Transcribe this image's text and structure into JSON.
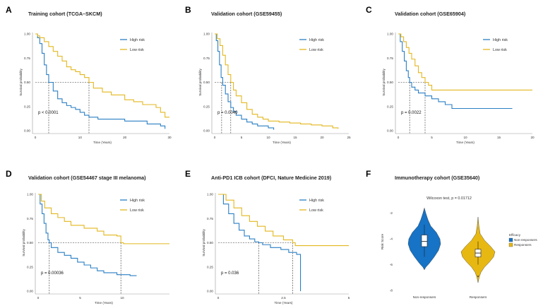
{
  "colors": {
    "high_risk": "#2A7FC4",
    "low_risk": "#E3B71F",
    "non_responders": "#1673C6",
    "responders": "#E8B812"
  },
  "chart_data": [
    {
      "panel": "A",
      "type": "line",
      "subtype": "kaplan-meier",
      "title": "Training cohort (TCGA–SKCM)",
      "xlabel": "Time (Years)",
      "ylabel": "Survival probability",
      "xlim": [
        0,
        30
      ],
      "ylim": [
        0,
        1
      ],
      "xticks": [
        "0",
        "10",
        "20",
        "30"
      ],
      "yticks": [
        "0.00",
        "0.25",
        "0.50",
        "0.75",
        "1.00"
      ],
      "legend_position": "top-right",
      "pvalue_text": "p < 0.0001",
      "median_lines": [
        3,
        12
      ],
      "series": [
        {
          "name": "High risk",
          "points": [
            [
              0,
              1
            ],
            [
              0.5,
              0.96
            ],
            [
              1,
              0.9
            ],
            [
              1.5,
              0.8
            ],
            [
              2,
              0.68
            ],
            [
              2.5,
              0.58
            ],
            [
              3,
              0.5
            ],
            [
              4,
              0.41
            ],
            [
              5,
              0.33
            ],
            [
              6,
              0.29
            ],
            [
              7,
              0.26
            ],
            [
              8,
              0.24
            ],
            [
              9,
              0.22
            ],
            [
              10,
              0.19
            ],
            [
              11,
              0.16
            ],
            [
              12,
              0.14
            ],
            [
              14,
              0.12
            ],
            [
              20,
              0.1
            ],
            [
              25,
              0.07
            ],
            [
              28,
              0.05
            ],
            [
              29,
              0.02
            ]
          ]
        },
        {
          "name": "Low risk",
          "points": [
            [
              0,
              1
            ],
            [
              0.5,
              0.98
            ],
            [
              1,
              0.96
            ],
            [
              2,
              0.92
            ],
            [
              3,
              0.87
            ],
            [
              4,
              0.82
            ],
            [
              5,
              0.77
            ],
            [
              6,
              0.72
            ],
            [
              7,
              0.66
            ],
            [
              8,
              0.63
            ],
            [
              9,
              0.61
            ],
            [
              10,
              0.58
            ],
            [
              11,
              0.55
            ],
            [
              12,
              0.5
            ],
            [
              13,
              0.44
            ],
            [
              15,
              0.4
            ],
            [
              17,
              0.37
            ],
            [
              20,
              0.32
            ],
            [
              22,
              0.3
            ],
            [
              24,
              0.27
            ],
            [
              27,
              0.24
            ],
            [
              28,
              0.19
            ],
            [
              29,
              0.14
            ],
            [
              30,
              0.14
            ]
          ]
        }
      ]
    },
    {
      "panel": "B",
      "type": "line",
      "subtype": "kaplan-meier",
      "title": "Validation cohort (GSE59455)",
      "xlabel": "Time (Years)",
      "ylabel": "Survival probability",
      "xlim": [
        0,
        25
      ],
      "ylim": [
        0,
        1
      ],
      "xticks": [
        "0",
        "5",
        "10",
        "15",
        "20",
        "25"
      ],
      "yticks": [
        "0.00",
        "0.25",
        "0.50",
        "0.75",
        "1.00"
      ],
      "legend_position": "top-right",
      "pvalue_text": "p = 0.0040",
      "median_lines": [
        1.3,
        3
      ],
      "series": [
        {
          "name": "High risk",
          "points": [
            [
              0,
              1
            ],
            [
              0.3,
              0.93
            ],
            [
              0.6,
              0.82
            ],
            [
              0.9,
              0.68
            ],
            [
              1.2,
              0.55
            ],
            [
              1.5,
              0.47
            ],
            [
              2,
              0.38
            ],
            [
              2.5,
              0.3
            ],
            [
              3,
              0.24
            ],
            [
              3.5,
              0.2
            ],
            [
              4,
              0.16
            ],
            [
              5,
              0.12
            ],
            [
              6,
              0.09
            ],
            [
              7,
              0.07
            ],
            [
              8,
              0.05
            ],
            [
              10,
              0.03
            ],
            [
              11,
              0.01
            ]
          ]
        },
        {
          "name": "Low risk",
          "points": [
            [
              0,
              1
            ],
            [
              0.5,
              0.95
            ],
            [
              1,
              0.88
            ],
            [
              1.5,
              0.78
            ],
            [
              2,
              0.68
            ],
            [
              2.5,
              0.58
            ],
            [
              3,
              0.5
            ],
            [
              3.5,
              0.42
            ],
            [
              4,
              0.36
            ],
            [
              5,
              0.29
            ],
            [
              6,
              0.22
            ],
            [
              7,
              0.17
            ],
            [
              8,
              0.14
            ],
            [
              9,
              0.12
            ],
            [
              10,
              0.1
            ],
            [
              12,
              0.09
            ],
            [
              14,
              0.08
            ],
            [
              16,
              0.07
            ],
            [
              18,
              0.06
            ],
            [
              20,
              0.05
            ],
            [
              22,
              0.03
            ],
            [
              23,
              0.02
            ]
          ]
        }
      ]
    },
    {
      "panel": "C",
      "type": "line",
      "subtype": "kaplan-meier",
      "title": "Validation cohort (GSE65904)",
      "xlabel": "Time (Years)",
      "ylabel": "Survival probability",
      "xlim": [
        0,
        20
      ],
      "ylim": [
        0,
        1
      ],
      "xticks": [
        "0",
        "5",
        "10",
        "15",
        "20"
      ],
      "yticks": [
        "0.00",
        "0.25",
        "0.50",
        "0.75",
        "1.00"
      ],
      "legend_position": "top-right",
      "pvalue_text": "p = 0.0022",
      "median_lines": [
        1.7,
        4
      ],
      "series": [
        {
          "name": "High risk",
          "points": [
            [
              0,
              1
            ],
            [
              0.3,
              0.92
            ],
            [
              0.6,
              0.82
            ],
            [
              0.9,
              0.72
            ],
            [
              1.2,
              0.62
            ],
            [
              1.5,
              0.55
            ],
            [
              1.7,
              0.5
            ],
            [
              2,
              0.45
            ],
            [
              2.5,
              0.42
            ],
            [
              3,
              0.39
            ],
            [
              4,
              0.36
            ],
            [
              5,
              0.33
            ],
            [
              6,
              0.3
            ],
            [
              7,
              0.27
            ],
            [
              8,
              0.23
            ],
            [
              17,
              0.23
            ]
          ]
        },
        {
          "name": "Low risk",
          "points": [
            [
              0,
              1
            ],
            [
              0.4,
              0.97
            ],
            [
              0.8,
              0.92
            ],
            [
              1.2,
              0.86
            ],
            [
              1.6,
              0.8
            ],
            [
              2,
              0.74
            ],
            [
              2.5,
              0.67
            ],
            [
              3,
              0.6
            ],
            [
              3.5,
              0.55
            ],
            [
              4,
              0.5
            ],
            [
              4.5,
              0.47
            ],
            [
              5,
              0.42
            ],
            [
              20,
              0.42
            ]
          ]
        }
      ]
    },
    {
      "panel": "D",
      "type": "line",
      "subtype": "kaplan-meier",
      "title": "Validation cohort (GSE54467 stage III melanoma)",
      "xlabel": "Time (Years)",
      "ylabel": "Survival probability",
      "xlim": [
        0,
        20
      ],
      "ylim": [
        0,
        1
      ],
      "xticks": [
        "0",
        "5",
        "10"
      ],
      "yticks": [
        "0.00",
        "0.25",
        "0.50",
        "0.75",
        "1.00"
      ],
      "legend_position": "top-right",
      "pvalue_text": "p = 0.00036",
      "median_lines": [
        1.7,
        12.6
      ],
      "series": [
        {
          "name": "High risk",
          "points": [
            [
              0,
              1
            ],
            [
              0.3,
              0.9
            ],
            [
              0.6,
              0.8
            ],
            [
              0.9,
              0.7
            ],
            [
              1.2,
              0.6
            ],
            [
              1.5,
              0.53
            ],
            [
              1.7,
              0.5
            ],
            [
              2,
              0.45
            ],
            [
              3,
              0.4
            ],
            [
              4,
              0.37
            ],
            [
              5,
              0.34
            ],
            [
              6,
              0.3
            ],
            [
              7,
              0.27
            ],
            [
              8,
              0.24
            ],
            [
              9,
              0.21
            ],
            [
              10,
              0.19
            ],
            [
              12,
              0.17
            ],
            [
              14,
              0.16
            ],
            [
              15,
              0.16
            ]
          ]
        },
        {
          "name": "Low risk",
          "points": [
            [
              0,
              1
            ],
            [
              0.5,
              0.93
            ],
            [
              1,
              0.86
            ],
            [
              2,
              0.8
            ],
            [
              3,
              0.76
            ],
            [
              4,
              0.72
            ],
            [
              5,
              0.68
            ],
            [
              7,
              0.65
            ],
            [
              9,
              0.62
            ],
            [
              10,
              0.58
            ],
            [
              12,
              0.57
            ],
            [
              12.6,
              0.5
            ],
            [
              13,
              0.49
            ],
            [
              20,
              0.49
            ]
          ]
        }
      ]
    },
    {
      "panel": "E",
      "type": "line",
      "subtype": "kaplan-meier",
      "title": "Anti-PD1 ICB cohort (DFCI, Nature Medicine 2019)",
      "xlabel": "Time (Years)",
      "ylabel": "Survival probability",
      "xlim": [
        0,
        5
      ],
      "ylim": [
        0,
        1
      ],
      "xticks": [
        "0",
        "2.5",
        "5"
      ],
      "yticks": [
        "0.00",
        "0.25",
        "0.50",
        "0.75",
        "1.00"
      ],
      "legend_position": "top-right",
      "pvalue_text": "p = 0.036",
      "median_lines": [
        1.55,
        2.85
      ],
      "series": [
        {
          "name": "High risk",
          "points": [
            [
              0,
              1
            ],
            [
              0.2,
              0.9
            ],
            [
              0.4,
              0.8
            ],
            [
              0.6,
              0.7
            ],
            [
              0.8,
              0.63
            ],
            [
              1,
              0.57
            ],
            [
              1.2,
              0.54
            ],
            [
              1.4,
              0.51
            ],
            [
              1.55,
              0.5
            ],
            [
              1.7,
              0.48
            ],
            [
              2,
              0.45
            ],
            [
              2.4,
              0.43
            ],
            [
              2.7,
              0.4
            ],
            [
              3,
              0.38
            ],
            [
              3.15,
              0.28
            ],
            [
              3.15,
              0
            ]
          ]
        },
        {
          "name": "Low risk",
          "points": [
            [
              0,
              1
            ],
            [
              0.3,
              0.94
            ],
            [
              0.6,
              0.86
            ],
            [
              0.9,
              0.78
            ],
            [
              1.2,
              0.72
            ],
            [
              1.5,
              0.67
            ],
            [
              1.8,
              0.62
            ],
            [
              2.1,
              0.57
            ],
            [
              2.5,
              0.53
            ],
            [
              2.85,
              0.5
            ],
            [
              2.95,
              0.47
            ],
            [
              5,
              0.47
            ]
          ]
        }
      ]
    },
    {
      "panel": "F",
      "type": "violin",
      "title": "Immunotherapy cohort (GSE35640)",
      "subtitle": "Wilcoxon test, p = 0.01712",
      "xlabel": "",
      "ylabel": "Risk Score",
      "ylim": [
        -8,
        0
      ],
      "yticks": [
        "-2",
        "-4",
        "-6",
        "-8"
      ],
      "categories": [
        "Non-responsers",
        "Responsers"
      ],
      "legend_title": "Efficacy",
      "legend_position": "right",
      "boxes": [
        {
          "name": "Non-responsers",
          "q1": -4.6,
          "median": -4.2,
          "q3": -3.7,
          "whisker_low": -5.4,
          "whisker_high": -2.9
        },
        {
          "name": "Responsers",
          "q1": -5.4,
          "median": -5.1,
          "q3": -4.8,
          "whisker_low": -6.0,
          "whisker_high": -4.2,
          "outliers": [
            -6.9
          ]
        }
      ]
    }
  ],
  "panels": {
    "A": "A",
    "B": "B",
    "C": "C",
    "D": "D",
    "E": "E",
    "F": "F"
  }
}
